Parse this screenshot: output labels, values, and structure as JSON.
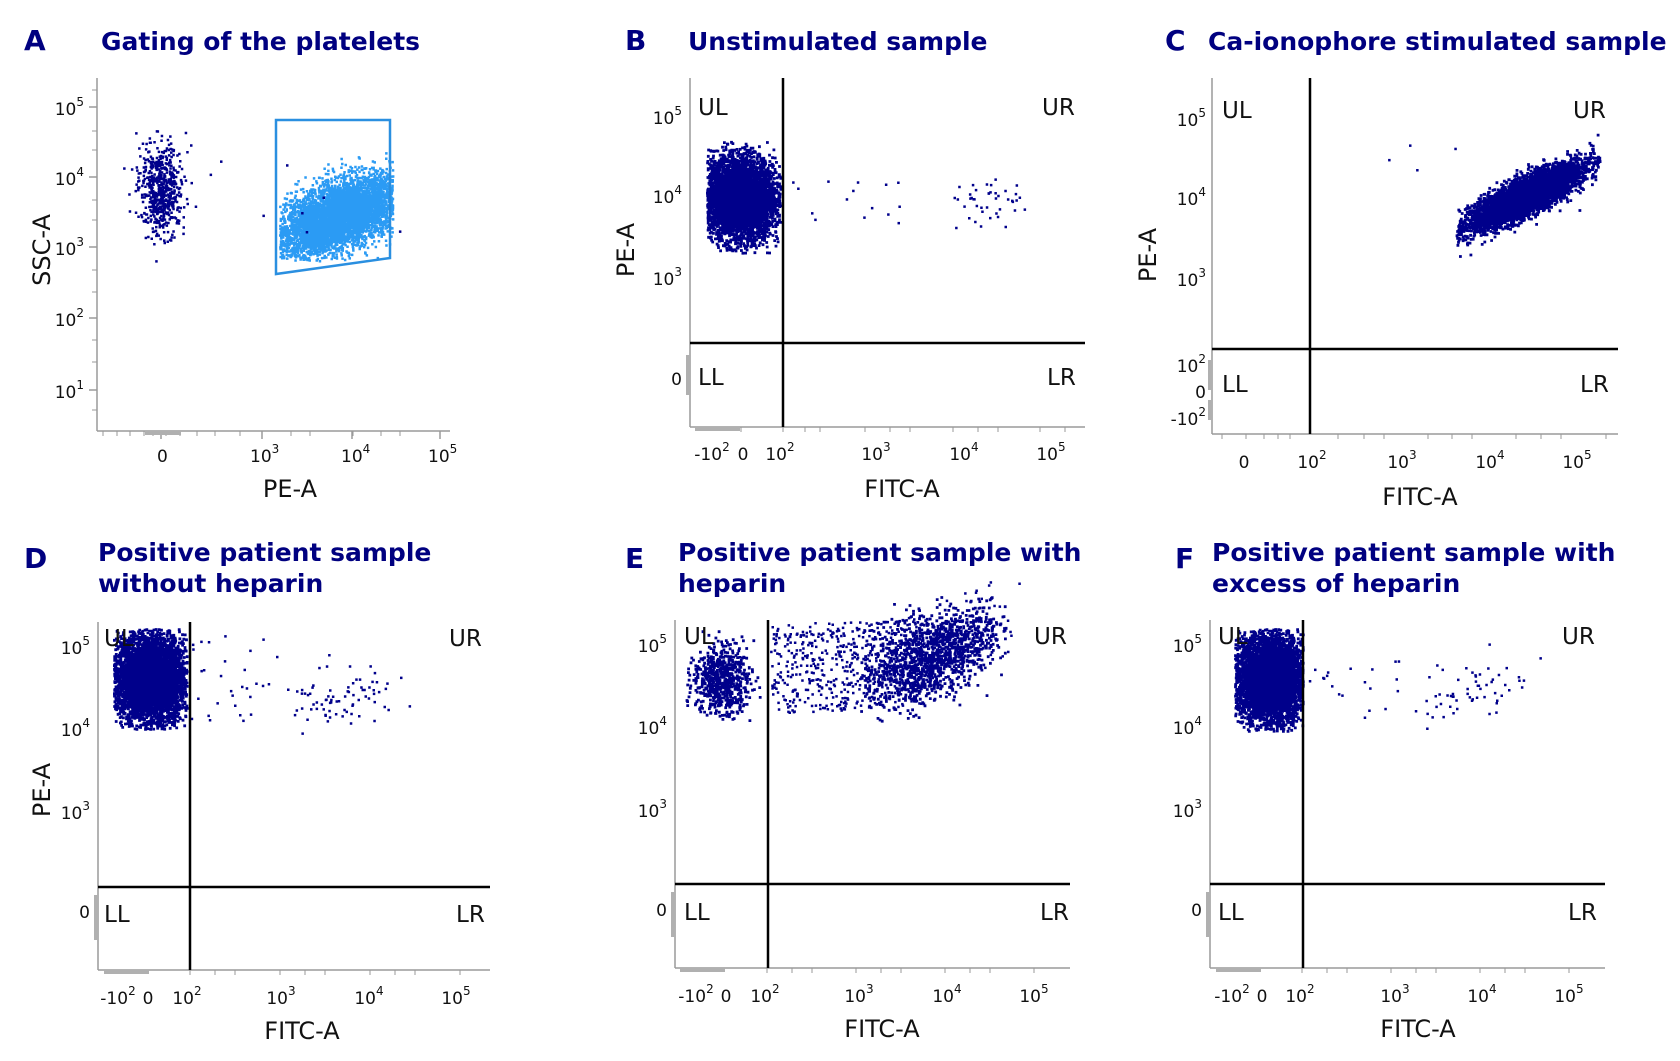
{
  "colors": {
    "title": "#000080",
    "points": "#00008b",
    "gate": "#2a8fe0",
    "gated_points": "#2b9bf4",
    "quadrant_lines": "#000000"
  },
  "panels": [
    {
      "letter": "A",
      "title": [
        "Gating of the platelets"
      ]
    },
    {
      "letter": "B",
      "title": [
        "Unstimulated sample"
      ]
    },
    {
      "letter": "C",
      "title": [
        "Ca-ionophore stimulated sample"
      ]
    },
    {
      "letter": "D",
      "title": [
        "Positive patient sample",
        "without heparin"
      ]
    },
    {
      "letter": "E",
      "title": [
        "Positive patient sample with",
        "heparin"
      ]
    },
    {
      "letter": "F",
      "title": [
        "Positive patient sample with",
        "excess of heparin"
      ]
    }
  ],
  "chart_data": [
    {
      "panel": "A",
      "type": "scatter",
      "title": "Gating of the platelets",
      "xlabel": "PE-A",
      "ylabel": "SSC-A",
      "x_scale": "biexponential",
      "y_scale": "log",
      "x_ticks": [
        "0",
        "10^3",
        "10^4",
        "10^5"
      ],
      "y_ticks": [
        "10^1",
        "10^2",
        "10^3",
        "10^4",
        "10^5"
      ],
      "gate": {
        "shape": "polygon",
        "vertices": [
          [
            1300,
            55000
          ],
          [
            28000,
            60000
          ],
          [
            28000,
            700
          ],
          [
            1300,
            400
          ]
        ]
      },
      "populations": [
        {
          "name": "ungated cluster",
          "x_center": 0,
          "y_center": 7000,
          "count_approx": 600
        },
        {
          "name": "gated platelets",
          "x_center": 5000,
          "y_center": 3500,
          "count_approx": 5000
        }
      ]
    },
    {
      "panel": "B",
      "type": "scatter",
      "title": "Unstimulated sample",
      "xlabel": "FITC-A",
      "ylabel": "PE-A",
      "x_ticks": [
        "-10^2",
        "0",
        "10^2",
        "10^3",
        "10^4",
        "10^5"
      ],
      "y_ticks": [
        "0",
        "10^3",
        "10^4",
        "10^5"
      ],
      "quadrants": [
        "UL",
        "UR",
        "LL",
        "LR"
      ],
      "quadrant_split": {
        "x": 120,
        "y": 150
      },
      "populations": [
        {
          "name": "main cluster",
          "x_center": 0,
          "y_center": 9000,
          "count_approx": 5000
        },
        {
          "name": "FITC-positive events",
          "x_center": 4000,
          "y_center": 8000,
          "count_approx": 50
        }
      ]
    },
    {
      "panel": "C",
      "type": "scatter",
      "title": "Ca-ionophore stimulated sample",
      "xlabel": "FITC-A",
      "ylabel": "PE-A",
      "x_ticks": [
        "0",
        "10^2",
        "10^3",
        "10^4",
        "10^5"
      ],
      "y_ticks": [
        "-10^2",
        "0",
        "10^2",
        "10^3",
        "10^4",
        "10^5"
      ],
      "quadrants": [
        "UL",
        "UR",
        "LL",
        "LR"
      ],
      "quadrant_split": {
        "x": 120,
        "y": 150
      },
      "populations": [
        {
          "name": "activated platelets",
          "x_center": 9000,
          "y_center": 12000,
          "count_approx": 5000
        }
      ]
    },
    {
      "panel": "D",
      "type": "scatter",
      "title": "Positive patient sample without heparin",
      "xlabel": "FITC-A",
      "ylabel": "PE-A",
      "x_ticks": [
        "-10^2",
        "0",
        "10^2",
        "10^3",
        "10^4",
        "10^5"
      ],
      "y_ticks": [
        "0",
        "10^3",
        "10^4",
        "10^5"
      ],
      "quadrants": [
        "UL",
        "UR",
        "LL",
        "LR"
      ],
      "quadrant_split": {
        "x": 120,
        "y": 150
      },
      "populations": [
        {
          "name": "main cluster",
          "x_center": 0,
          "y_center": 10000,
          "count_approx": 5000
        },
        {
          "name": "FITC-positive events",
          "x_center": 4000,
          "y_center": 9000,
          "count_approx": 100
        }
      ]
    },
    {
      "panel": "E",
      "type": "scatter",
      "title": "Positive patient sample with heparin",
      "xlabel": "FITC-A",
      "ylabel": "PE-A",
      "x_ticks": [
        "-10^2",
        "0",
        "10^2",
        "10^3",
        "10^4",
        "10^5"
      ],
      "y_ticks": [
        "0",
        "10^3",
        "10^4",
        "10^5"
      ],
      "quadrants": [
        "UL",
        "UR",
        "LL",
        "LR"
      ],
      "quadrant_split": {
        "x": 120,
        "y": 150
      },
      "populations": [
        {
          "name": "FITC-negative cluster",
          "x_center": 0,
          "y_center": 12000,
          "count_approx": 600
        },
        {
          "name": "bridging events",
          "x_center": 1000,
          "y_center": 15000,
          "count_approx": 500
        },
        {
          "name": "FITC-positive cluster",
          "x_center": 10000,
          "y_center": 20000,
          "count_approx": 1200
        }
      ]
    },
    {
      "panel": "F",
      "type": "scatter",
      "title": "Positive patient sample with excess of heparin",
      "xlabel": "FITC-A",
      "ylabel": "PE-A",
      "x_ticks": [
        "-10^2",
        "0",
        "10^2",
        "10^3",
        "10^4",
        "10^5"
      ],
      "y_ticks": [
        "0",
        "10^3",
        "10^4",
        "10^5"
      ],
      "quadrants": [
        "UL",
        "UR",
        "LL",
        "LR"
      ],
      "quadrant_split": {
        "x": 120,
        "y": 150
      },
      "populations": [
        {
          "name": "main cluster",
          "x_center": 0,
          "y_center": 10000,
          "count_approx": 5000
        },
        {
          "name": "FITC-positive events",
          "x_center": 4000,
          "y_center": 8000,
          "count_approx": 70
        }
      ]
    }
  ]
}
